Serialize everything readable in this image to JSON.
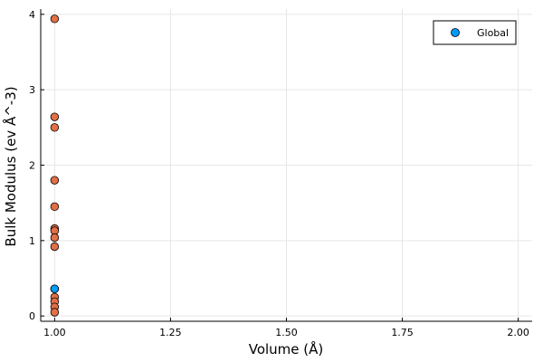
{
  "chart_data": {
    "type": "scatter",
    "title": "",
    "xlabel": "Volume (Å)",
    "ylabel": "Bulk Modulus (ev Å^-3)",
    "xlim": [
      0.97,
      2.03
    ],
    "ylim": [
      -0.07,
      4.07
    ],
    "xticks": [
      1.0,
      1.25,
      1.5,
      1.75,
      2.0
    ],
    "xtick_labels": [
      "1.00",
      "1.25",
      "1.50",
      "1.75",
      "2.00"
    ],
    "yticks": [
      0,
      1,
      2,
      3,
      4
    ],
    "ytick_labels": [
      "0",
      "1",
      "2",
      "3",
      "4"
    ],
    "grid": true,
    "legend_position": "top-right",
    "series": [
      {
        "name": "Global",
        "color": "#009af9",
        "x": [
          1.0
        ],
        "y": [
          0.36
        ]
      },
      {
        "color": "#e26f46",
        "x": [
          1.0,
          1.0,
          1.0,
          1.0,
          1.0,
          1.0,
          1.0,
          1.0,
          1.0,
          1.0,
          1.0,
          1.0,
          1.0,
          1.0
        ],
        "y": [
          3.94,
          2.64,
          2.5,
          1.8,
          1.45,
          1.16,
          1.13,
          1.04,
          0.92,
          0.25,
          0.19,
          0.12,
          0.05,
          0.36
        ]
      }
    ]
  }
}
